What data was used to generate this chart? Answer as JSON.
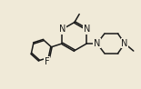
{
  "bg_color": "#f0ead8",
  "bond_color": "#1a1a1a",
  "atom_color": "#1a1a1a",
  "bond_lw": 1.1,
  "font_size": 6.5,
  "figsize": [
    1.55,
    0.98
  ],
  "dpi": 100,
  "xlim": [
    0,
    10
  ],
  "ylim": [
    0,
    6.5
  ]
}
